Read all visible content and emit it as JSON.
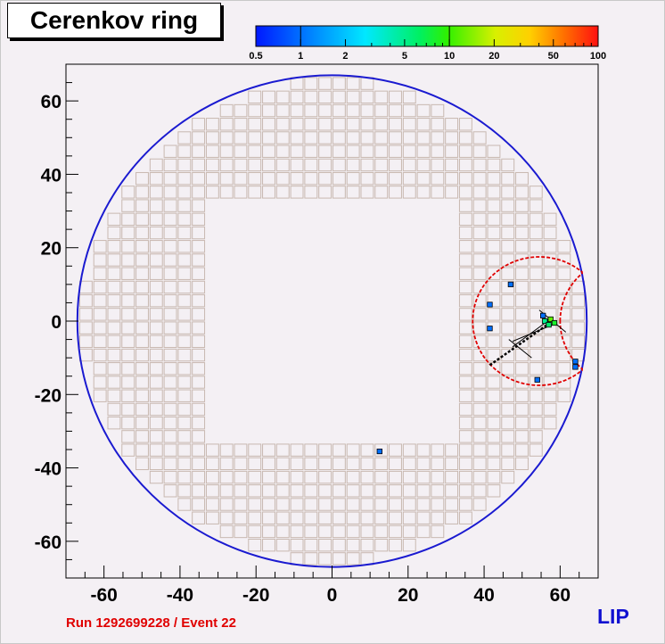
{
  "title": "Cerenkov ring",
  "footer": {
    "run_event": "Run 1292699228 / Event 22",
    "lab": "LIP"
  },
  "colors": {
    "background": "#f4f0f4",
    "pmt_grid": "#c8b8b0",
    "ring": "#1a1ad0",
    "reco_ring": "#e00000",
    "run_label": "#e00000",
    "lab_label": "#1010d0"
  },
  "chart_data": {
    "type": "scatter",
    "xlim": [
      -70,
      70
    ],
    "ylim": [
      -70,
      70
    ],
    "x_ticks": [
      -60,
      -40,
      -20,
      0,
      20,
      40,
      60
    ],
    "y_ticks": [
      -60,
      -40,
      -20,
      0,
      20,
      40,
      60
    ],
    "grid": false,
    "radiator_radius": 67,
    "pmt_pitch": 3.7,
    "pmt_hole_half_width": 34,
    "colorbar": {
      "scale": "log",
      "range": [
        0.5,
        100
      ],
      "ticks": [
        "0.5",
        "1",
        "2",
        "5",
        "10",
        "20",
        "50",
        "100"
      ]
    },
    "hits": [
      {
        "x": 56,
        "y": 0,
        "value": 5
      },
      {
        "x": 57.5,
        "y": 0.5,
        "value": 12
      },
      {
        "x": 58.5,
        "y": -0.5,
        "value": 8
      },
      {
        "x": 57,
        "y": -1,
        "value": 6
      },
      {
        "x": 55.5,
        "y": 1.5,
        "value": 1
      },
      {
        "x": 41.5,
        "y": 4.5,
        "value": 1
      },
      {
        "x": 41.5,
        "y": -2,
        "value": 1
      },
      {
        "x": 47,
        "y": 10,
        "value": 1
      },
      {
        "x": 54,
        "y": -16,
        "value": 1
      },
      {
        "x": 64,
        "y": -11,
        "value": 1
      },
      {
        "x": 64,
        "y": -12.5,
        "value": 1
      },
      {
        "x": 12.5,
        "y": -35.5,
        "value": 1
      }
    ],
    "reco_ring": {
      "cx": 54.5,
      "cy": 0,
      "r": 17.5,
      "reflection_x": 66
    },
    "track": {
      "x0": 41.5,
      "y0": -12,
      "x1": 58,
      "y1": 0
    }
  }
}
